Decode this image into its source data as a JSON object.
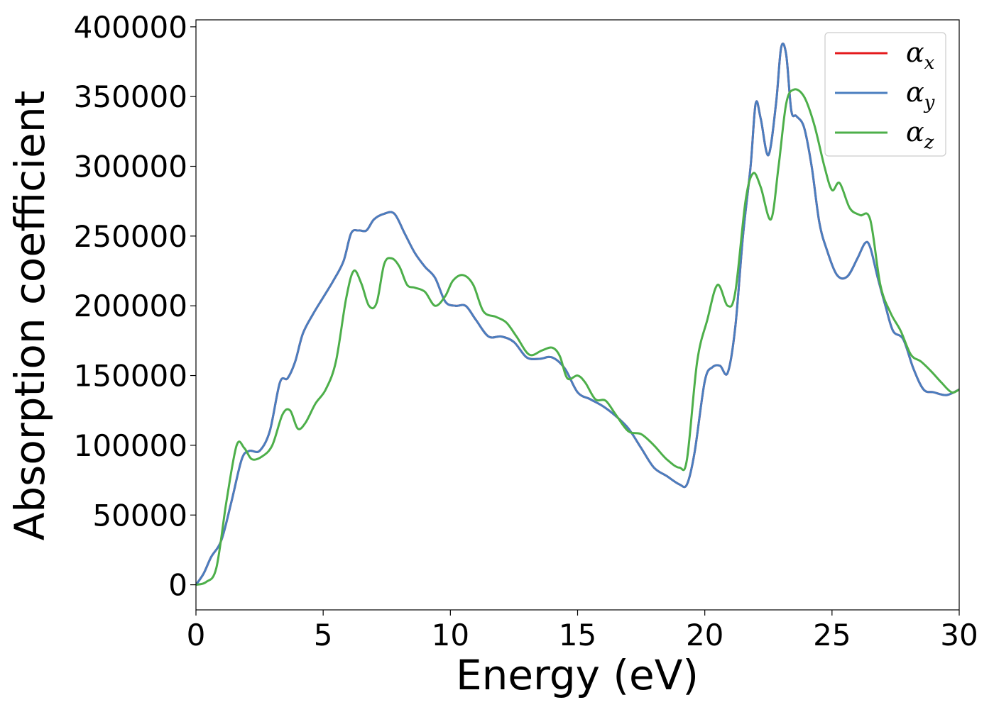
{
  "chart_data": {
    "type": "line",
    "title": "",
    "xlabel": "Energy (eV)",
    "ylabel": "Absorption coefficient",
    "xlim": [
      0,
      30
    ],
    "ylim": [
      -18000,
      405000
    ],
    "xticks": [
      0,
      5,
      10,
      15,
      20,
      25,
      30
    ],
    "yticks": [
      0,
      50000,
      100000,
      150000,
      200000,
      250000,
      300000,
      350000,
      400000
    ],
    "xtick_labels": [
      "0",
      "5",
      "10",
      "15",
      "20",
      "25",
      "30"
    ],
    "ytick_labels": [
      "0",
      "50000",
      "100000",
      "150000",
      "200000",
      "250000",
      "300000",
      "350000",
      "400000"
    ],
    "grid": false,
    "legend_position": "top-right",
    "series": [
      {
        "name": "αx",
        "legend_base": "α",
        "legend_sub": "x",
        "color": "#e41a1c",
        "x": [
          0,
          0.3,
          0.6,
          1.0,
          1.4,
          1.8,
          2.1,
          2.5,
          2.9,
          3.3,
          3.6,
          3.9,
          4.2,
          4.6,
          5.0,
          5.4,
          5.8,
          6.1,
          6.4,
          6.7,
          7.0,
          7.4,
          7.8,
          8.2,
          8.6,
          9.0,
          9.4,
          9.8,
          10.2,
          10.6,
          11.0,
          11.5,
          12.0,
          12.5,
          13.0,
          13.5,
          14.0,
          14.5,
          15.0,
          15.5,
          16.0,
          16.5,
          17.0,
          17.5,
          18.0,
          18.5,
          19.0,
          19.3,
          19.6,
          20.0,
          20.3,
          20.6,
          20.9,
          21.2,
          21.5,
          21.8,
          22.0,
          22.2,
          22.5,
          22.8,
          23.0,
          23.2,
          23.4,
          23.6,
          23.9,
          24.2,
          24.5,
          24.8,
          25.2,
          25.6,
          26.0,
          26.3,
          26.5,
          26.8,
          27.1,
          27.4,
          27.8,
          28.2,
          28.6,
          29.0,
          29.5,
          30.0
        ],
        "y": [
          0,
          8000,
          20000,
          32000,
          60000,
          90000,
          96000,
          96000,
          110000,
          145000,
          148000,
          160000,
          180000,
          194000,
          206000,
          218000,
          232000,
          252000,
          254000,
          254000,
          262000,
          266000,
          266000,
          252000,
          238000,
          228000,
          220000,
          203000,
          200000,
          200000,
          190000,
          178000,
          178000,
          174000,
          163000,
          162000,
          163000,
          155000,
          138000,
          133000,
          128000,
          121000,
          112000,
          98000,
          84000,
          78000,
          72000,
          72000,
          95000,
          146000,
          156000,
          157000,
          152000,
          185000,
          250000,
          300000,
          345000,
          334000,
          308000,
          345000,
          385000,
          380000,
          340000,
          336000,
          328000,
          300000,
          260000,
          240000,
          222000,
          221000,
          234000,
          245000,
          242000,
          220000,
          200000,
          182000,
          176000,
          155000,
          140000,
          138000,
          136000,
          140000
        ]
      },
      {
        "name": "αy",
        "legend_base": "α",
        "legend_sub": "y",
        "color": "#4a7ebf",
        "x": [
          0,
          0.3,
          0.6,
          1.0,
          1.4,
          1.8,
          2.1,
          2.5,
          2.9,
          3.3,
          3.6,
          3.9,
          4.2,
          4.6,
          5.0,
          5.4,
          5.8,
          6.1,
          6.4,
          6.7,
          7.0,
          7.4,
          7.8,
          8.2,
          8.6,
          9.0,
          9.4,
          9.8,
          10.2,
          10.6,
          11.0,
          11.5,
          12.0,
          12.5,
          13.0,
          13.5,
          14.0,
          14.5,
          15.0,
          15.5,
          16.0,
          16.5,
          17.0,
          17.5,
          18.0,
          18.5,
          19.0,
          19.3,
          19.6,
          20.0,
          20.3,
          20.6,
          20.9,
          21.2,
          21.5,
          21.8,
          22.0,
          22.2,
          22.5,
          22.8,
          23.0,
          23.2,
          23.4,
          23.6,
          23.9,
          24.2,
          24.5,
          24.8,
          25.2,
          25.6,
          26.0,
          26.3,
          26.5,
          26.8,
          27.1,
          27.4,
          27.8,
          28.2,
          28.6,
          29.0,
          29.5,
          30.0
        ],
        "y": [
          0,
          8000,
          20000,
          32000,
          60000,
          90000,
          96000,
          96000,
          110000,
          145000,
          148000,
          160000,
          180000,
          194000,
          206000,
          218000,
          232000,
          252000,
          254000,
          254000,
          262000,
          266000,
          266000,
          252000,
          238000,
          228000,
          220000,
          203000,
          200000,
          200000,
          190000,
          178000,
          178000,
          174000,
          163000,
          162000,
          163000,
          155000,
          138000,
          133000,
          128000,
          121000,
          112000,
          98000,
          84000,
          78000,
          72000,
          72000,
          95000,
          146000,
          156000,
          157000,
          152000,
          185000,
          250000,
          300000,
          345000,
          334000,
          308000,
          345000,
          385000,
          380000,
          340000,
          336000,
          328000,
          300000,
          260000,
          240000,
          222000,
          221000,
          234000,
          245000,
          242000,
          220000,
          200000,
          182000,
          176000,
          155000,
          140000,
          138000,
          136000,
          140000
        ]
      },
      {
        "name": "αz",
        "legend_base": "α",
        "legend_sub": "z",
        "color": "#4daf4a",
        "x": [
          0,
          0.4,
          0.8,
          1.2,
          1.6,
          1.9,
          2.2,
          2.6,
          3.0,
          3.4,
          3.7,
          4.0,
          4.3,
          4.7,
          5.1,
          5.5,
          5.9,
          6.2,
          6.5,
          6.8,
          7.1,
          7.4,
          7.7,
          8.0,
          8.3,
          8.6,
          9.0,
          9.4,
          9.8,
          10.1,
          10.5,
          10.9,
          11.3,
          11.8,
          12.2,
          12.6,
          13.1,
          13.6,
          14.0,
          14.3,
          14.6,
          15.0,
          15.3,
          15.7,
          16.1,
          16.5,
          17.0,
          17.5,
          18.0,
          18.5,
          19.0,
          19.3,
          19.7,
          20.1,
          20.5,
          20.9,
          21.2,
          21.6,
          21.9,
          22.2,
          22.6,
          22.9,
          23.2,
          23.5,
          23.9,
          24.3,
          24.7,
          25.0,
          25.3,
          25.7,
          26.1,
          26.5,
          26.9,
          27.3,
          27.7,
          28.1,
          28.5,
          28.9,
          29.3,
          29.7,
          30.0
        ],
        "y": [
          0,
          2000,
          12000,
          60000,
          100000,
          98000,
          90000,
          92000,
          100000,
          122000,
          125000,
          112000,
          116000,
          130000,
          140000,
          160000,
          205000,
          225000,
          216000,
          200000,
          202000,
          230000,
          234000,
          228000,
          215000,
          213000,
          210000,
          200000,
          207000,
          218000,
          222000,
          215000,
          196000,
          192000,
          188000,
          178000,
          165000,
          168000,
          170000,
          164000,
          148000,
          150000,
          145000,
          133000,
          132000,
          122000,
          110000,
          108000,
          100000,
          90000,
          84000,
          90000,
          160000,
          190000,
          215000,
          200000,
          210000,
          275000,
          295000,
          285000,
          262000,
          300000,
          345000,
          355000,
          350000,
          330000,
          300000,
          283000,
          288000,
          270000,
          265000,
          262000,
          215000,
          195000,
          182000,
          165000,
          160000,
          153000,
          145000,
          138000,
          140000
        ]
      }
    ]
  }
}
